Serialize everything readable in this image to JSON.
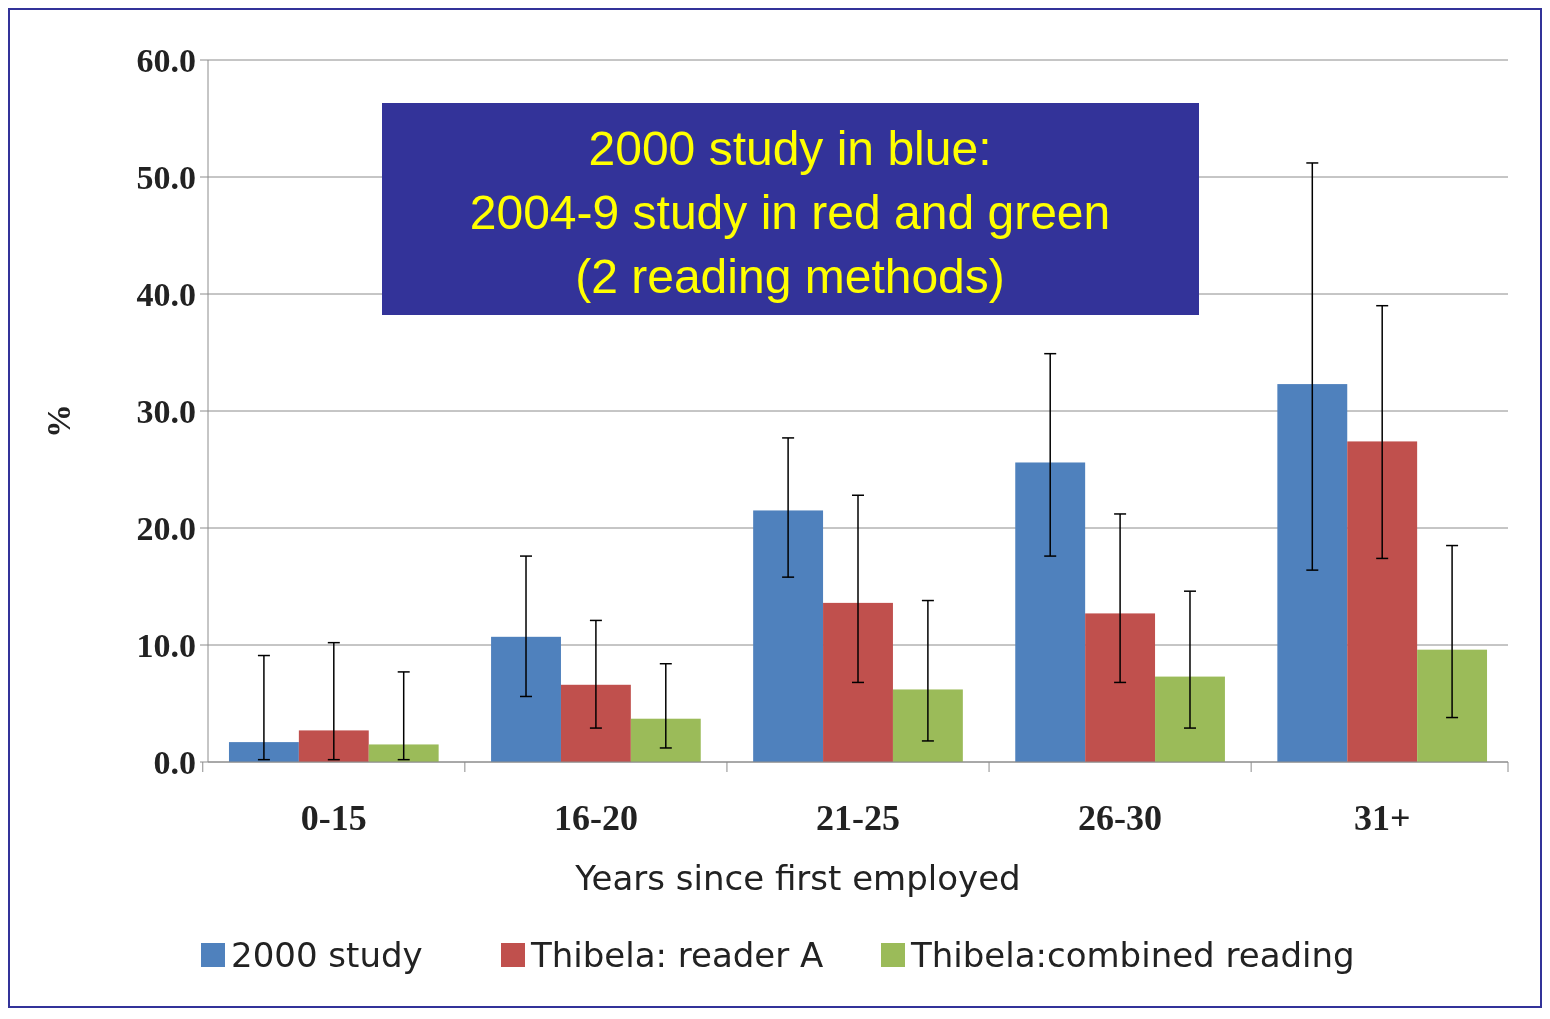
{
  "chart_data": {
    "type": "bar",
    "xlabel": "Years since first employed",
    "ylabel": "%",
    "categories": [
      "0-15",
      "16-20",
      "21-25",
      "26-30",
      "31+"
    ],
    "series": [
      {
        "name": "2000 study",
        "color": "#4f81bd",
        "values": [
          1.7,
          10.7,
          21.5,
          25.6,
          32.3
        ],
        "errors": [
          [
            0.2,
            9.1
          ],
          [
            5.6,
            17.6
          ],
          [
            15.8,
            27.7
          ],
          [
            17.6,
            34.9
          ],
          [
            16.4,
            51.2
          ]
        ]
      },
      {
        "name": "Thibela: reader A",
        "color": "#c0504d",
        "values": [
          2.7,
          6.6,
          13.6,
          12.7,
          27.4
        ],
        "errors": [
          [
            0.2,
            10.2
          ],
          [
            2.9,
            12.1
          ],
          [
            6.8,
            22.8
          ],
          [
            6.8,
            21.2
          ],
          [
            17.4,
            39.0
          ]
        ]
      },
      {
        "name": "Thibela:combined reading",
        "color": "#9bbb59",
        "values": [
          1.5,
          3.7,
          6.2,
          7.3,
          9.6
        ],
        "errors": [
          [
            0.2,
            7.7
          ],
          [
            1.2,
            8.4
          ],
          [
            1.8,
            13.8
          ],
          [
            2.9,
            14.6
          ],
          [
            3.8,
            18.5
          ]
        ]
      }
    ],
    "ylim": [
      0,
      60
    ],
    "yticks": [
      {
        "value": 0,
        "label": "0.0"
      },
      {
        "value": 10,
        "label": "10.0"
      },
      {
        "value": 20,
        "label": "20.0"
      },
      {
        "value": 30,
        "label": "30.0"
      },
      {
        "value": 40,
        "label": "40.0"
      },
      {
        "value": 50,
        "label": "50.0"
      },
      {
        "value": 60,
        "label": "60.0"
      }
    ],
    "grid": "y",
    "legend": "bottom",
    "annotations": [
      "2000 study in blue:\n2004-9 study in red and green\n(2 reading methods)"
    ]
  }
}
